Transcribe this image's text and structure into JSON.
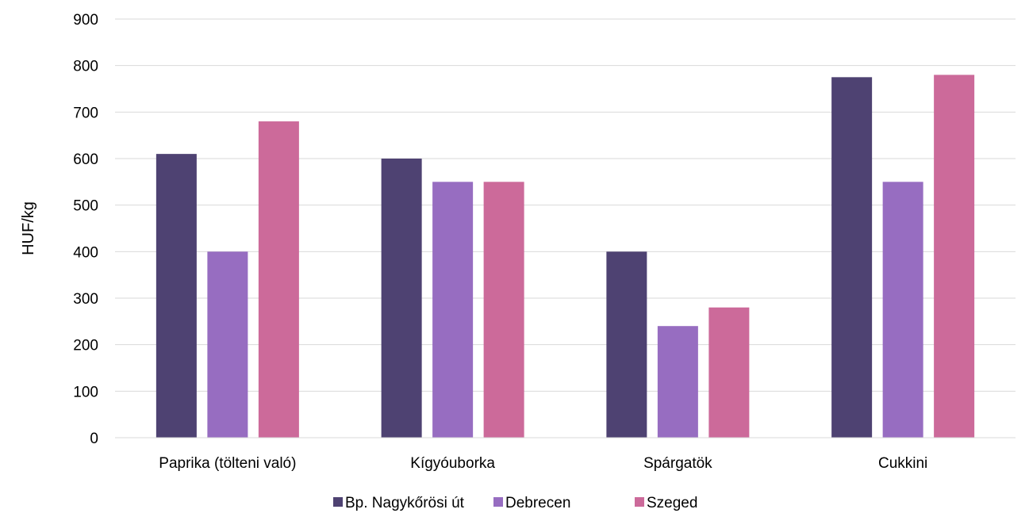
{
  "chart_data": {
    "type": "bar",
    "title": "",
    "xlabel": "",
    "ylabel": "HUF/kg",
    "ylim": [
      0,
      900
    ],
    "yticks": [
      0,
      100,
      200,
      300,
      400,
      500,
      600,
      700,
      800,
      900
    ],
    "grid": true,
    "legend_position": "bottom",
    "categories": [
      "Paprika (tölteni való)",
      "Kígyóuborka",
      "Spárgatök",
      "Cukkini"
    ],
    "series": [
      {
        "name": "Bp. Nagykőrösi út",
        "color": "#4e4272",
        "values": [
          610,
          600,
          400,
          775
        ]
      },
      {
        "name": "Debrecen",
        "color": "#976dc1",
        "values": [
          400,
          550,
          240,
          550
        ]
      },
      {
        "name": "Szeged",
        "color": "#cc6a9a",
        "values": [
          680,
          550,
          280,
          780
        ]
      }
    ]
  }
}
